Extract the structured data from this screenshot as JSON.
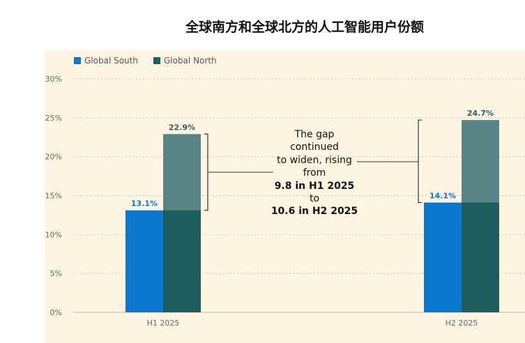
{
  "title": "全球南方和全球北方的人工智能用户份额",
  "colors": {
    "south": "#0b78d0",
    "north_dark": "#1d5c5e",
    "north_light": "#5a8587",
    "background": "#fdf5e2"
  },
  "annotation": {
    "line1": "The gap",
    "line2": "continued",
    "line3": "to widen, rising",
    "line4": "from",
    "line5": "9.8 in H1 2025",
    "line6": "to",
    "line7": "10.6 in H2 2025"
  },
  "chart_data": {
    "type": "bar",
    "categories": [
      "H1 2025",
      "H2 2025"
    ],
    "series": [
      {
        "name": "Global South",
        "values": [
          13.1,
          14.1
        ],
        "labels": [
          "13.1%",
          "14.1%"
        ]
      },
      {
        "name": "Global North",
        "values": [
          22.9,
          24.7
        ],
        "labels": [
          "22.9%",
          "24.7%"
        ]
      }
    ],
    "ylim": [
      0,
      30
    ],
    "yticks": [
      0,
      5,
      10,
      15,
      20,
      25,
      30
    ],
    "ytick_labels": [
      "0%",
      "5%",
      "10%",
      "15%",
      "20%",
      "25%",
      "30%"
    ],
    "grid": true,
    "legend": "top-left"
  }
}
